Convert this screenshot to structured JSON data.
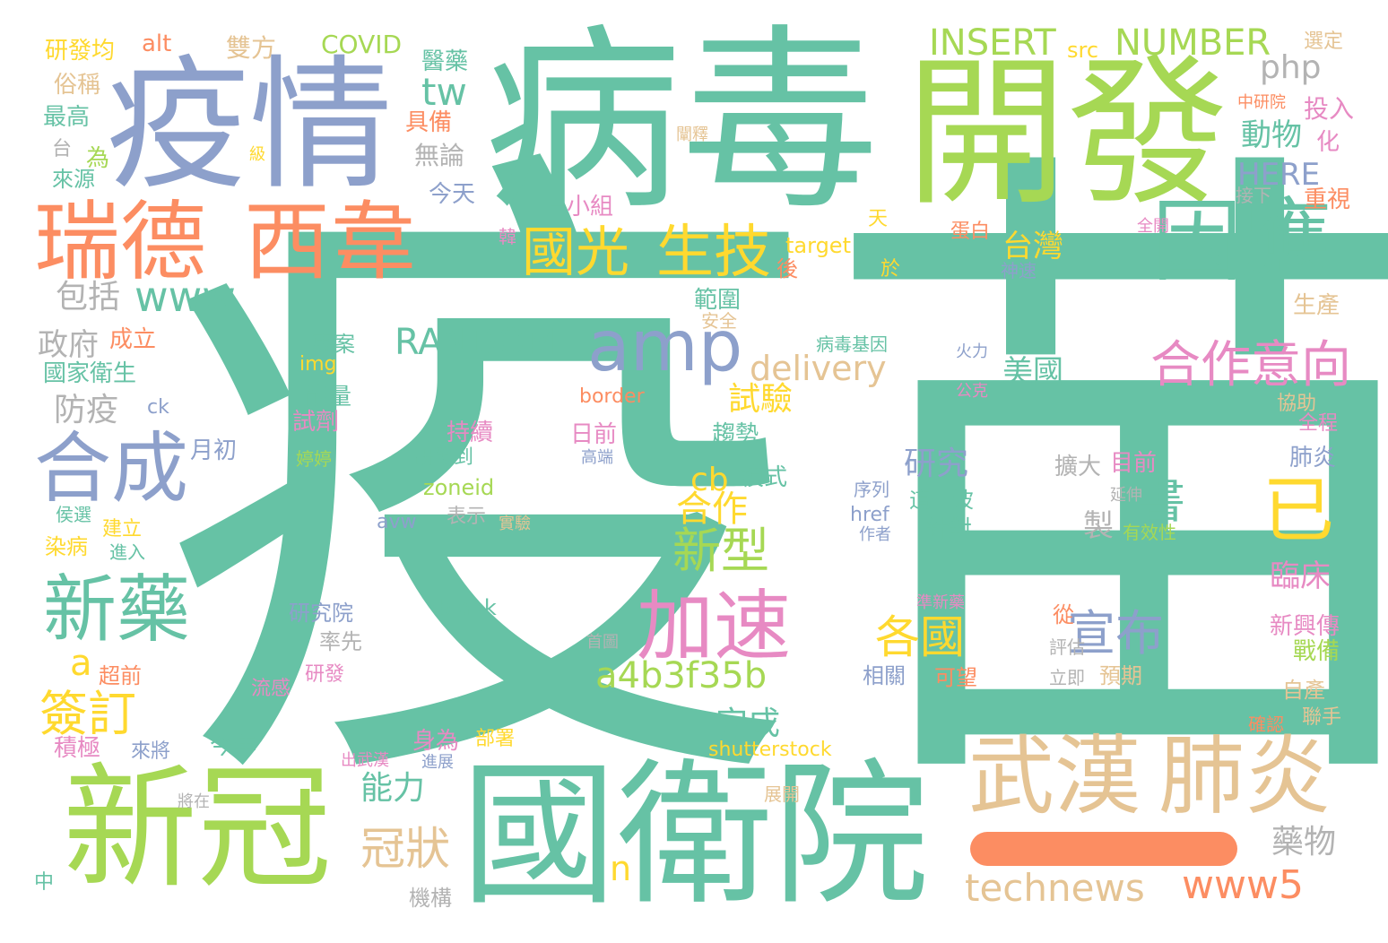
{
  "palette": {
    "teal": "#66c2a5",
    "orange": "#fc8d62",
    "blue": "#8da0cb",
    "pink": "#e78ac3",
    "green": "#a6d854",
    "yellow": "#ffd92f",
    "tan": "#e5c494",
    "gray": "#b3b3b3"
  },
  "words": [
    {
      "text": "疫苗",
      "color": "teal"
    },
    {
      "text": "病毒",
      "color": "teal"
    },
    {
      "text": "開發",
      "color": "green"
    },
    {
      "text": "疫情",
      "color": "blue"
    },
    {
      "text": "瑞德",
      "color": "orange"
    },
    {
      "text": "西韋",
      "color": "orange"
    },
    {
      "text": "因應",
      "color": "teal"
    },
    {
      "text": "國光",
      "color": "yellow"
    },
    {
      "text": "生技",
      "color": "yellow"
    },
    {
      "text": "amp",
      "color": "blue"
    },
    {
      "text": "delivery",
      "color": "tan"
    },
    {
      "text": "合作意向",
      "color": "pink"
    },
    {
      "text": "合成",
      "color": "blue"
    },
    {
      "text": "新藥",
      "color": "teal"
    },
    {
      "text": "加速",
      "color": "pink"
    },
    {
      "text": "新冠",
      "color": "green"
    },
    {
      "text": "國衛院",
      "color": "teal"
    },
    {
      "text": "武漢",
      "color": "tan"
    },
    {
      "text": "肺炎",
      "color": "tan"
    },
    {
      "text": "technews",
      "color": "tan"
    },
    {
      "text": "www5",
      "color": "orange"
    },
    {
      "text": "a4b3f35b",
      "color": "green"
    },
    {
      "text": "一",
      "color": "orange"
    },
    {
      "text": "INSERT",
      "color": "green"
    },
    {
      "text": "NUMBER",
      "color": "green"
    },
    {
      "text": "php",
      "color": "gray"
    },
    {
      "text": "tw",
      "color": "teal"
    },
    {
      "text": "www",
      "color": "teal"
    },
    {
      "text": "RANDOM",
      "color": "teal"
    },
    {
      "text": "台灣",
      "color": "yellow"
    },
    {
      "text": "美國",
      "color": "teal"
    },
    {
      "text": "試驗",
      "color": "yellow"
    },
    {
      "text": "包括",
      "color": "gray"
    },
    {
      "text": "政府",
      "color": "gray"
    },
    {
      "text": "防疫",
      "color": "gray"
    },
    {
      "text": "簽訂",
      "color": "yellow"
    },
    {
      "text": "a",
      "color": "yellow"
    },
    {
      "text": "cb",
      "color": "yellow"
    },
    {
      "text": "合作",
      "color": "yellow"
    },
    {
      "text": "新型",
      "color": "green"
    },
    {
      "text": "已",
      "color": "yellow"
    },
    {
      "text": "書",
      "color": "teal"
    },
    {
      "text": "宣布",
      "color": "blue"
    },
    {
      "text": "各國",
      "color": "yellow"
    },
    {
      "text": "研究",
      "color": "blue"
    },
    {
      "text": "冠狀",
      "color": "tan"
    },
    {
      "text": "完成",
      "color": "teal"
    },
    {
      "text": "能力",
      "color": "teal"
    },
    {
      "text": "n",
      "color": "yellow"
    },
    {
      "text": "動物",
      "color": "teal"
    },
    {
      "text": "HERE",
      "color": "blue"
    },
    {
      "text": "臨床",
      "color": "pink"
    },
    {
      "text": "新興傳",
      "color": "pink"
    },
    {
      "text": "戰備",
      "color": "green"
    },
    {
      "text": "藥物",
      "color": "gray"
    },
    {
      "text": "研發均",
      "color": "yellow"
    },
    {
      "text": "alt",
      "color": "orange"
    },
    {
      "text": "雙方",
      "color": "tan"
    },
    {
      "text": "COVID",
      "color": "green"
    },
    {
      "text": "src",
      "color": "yellow"
    },
    {
      "text": "選定",
      "color": "tan"
    },
    {
      "text": "醫藥",
      "color": "teal"
    },
    {
      "text": "俗稱",
      "color": "tan"
    },
    {
      "text": "最高",
      "color": "teal"
    },
    {
      "text": "具備",
      "color": "orange"
    },
    {
      "text": "無論",
      "color": "gray"
    },
    {
      "text": "今天",
      "color": "blue"
    },
    {
      "text": "闡釋",
      "color": "tan"
    },
    {
      "text": "中研院",
      "color": "orange"
    },
    {
      "text": "投入",
      "color": "pink"
    },
    {
      "text": "化",
      "color": "pink"
    },
    {
      "text": "台",
      "color": "gray"
    },
    {
      "text": "為",
      "color": "green"
    },
    {
      "text": "來源",
      "color": "teal"
    },
    {
      "text": "級",
      "color": "yellow"
    },
    {
      "text": "接下",
      "color": "gray"
    },
    {
      "text": "重視",
      "color": "orange"
    },
    {
      "text": "小組",
      "color": "pink"
    },
    {
      "text": "天",
      "color": "yellow"
    },
    {
      "text": "全開",
      "color": "pink"
    },
    {
      "text": "韓",
      "color": "pink"
    },
    {
      "text": "target",
      "color": "yellow"
    },
    {
      "text": "後",
      "color": "orange"
    },
    {
      "text": "蛋白",
      "color": "orange"
    },
    {
      "text": "神速",
      "color": "blue"
    },
    {
      "text": "於",
      "color": "yellow"
    },
    {
      "text": "範圍",
      "color": "teal"
    },
    {
      "text": "安全",
      "color": "tan"
    },
    {
      "text": "生產",
      "color": "tan"
    },
    {
      "text": "成立",
      "color": "orange"
    },
    {
      "text": "專案",
      "color": "teal"
    },
    {
      "text": "病毒基因",
      "color": "teal"
    },
    {
      "text": "火力",
      "color": "blue"
    },
    {
      "text": "img",
      "color": "yellow"
    },
    {
      "text": "國家衛生",
      "color": "teal"
    },
    {
      "text": "能量",
      "color": "teal"
    },
    {
      "text": "border",
      "color": "orange"
    },
    {
      "text": "公克",
      "color": "pink"
    },
    {
      "text": "協助",
      "color": "tan"
    },
    {
      "text": "全程",
      "color": "pink"
    },
    {
      "text": "ck",
      "color": "blue"
    },
    {
      "text": "試劑",
      "color": "pink"
    },
    {
      "text": "持續",
      "color": "pink"
    },
    {
      "text": "日前",
      "color": "pink"
    },
    {
      "text": "趨勢",
      "color": "teal"
    },
    {
      "text": "月初",
      "color": "blue"
    },
    {
      "text": "婷婷",
      "color": "green"
    },
    {
      "text": "研發到",
      "color": "teal"
    },
    {
      "text": "高端",
      "color": "blue"
    },
    {
      "text": "肺炎",
      "color": "blue"
    },
    {
      "text": "模式",
      "color": "teal"
    },
    {
      "text": "擴大",
      "color": "gray"
    },
    {
      "text": "目前",
      "color": "pink"
    },
    {
      "text": "zoneid",
      "color": "green"
    },
    {
      "text": "序列",
      "color": "blue"
    },
    {
      "text": "這一波",
      "color": "teal"
    },
    {
      "text": "延伸",
      "color": "gray"
    },
    {
      "text": "侯選",
      "color": "teal"
    },
    {
      "text": "表示",
      "color": "gray"
    },
    {
      "text": "href",
      "color": "blue"
    },
    {
      "text": "建立",
      "color": "yellow"
    },
    {
      "text": "avw",
      "color": "blue"
    },
    {
      "text": "實驗",
      "color": "tan"
    },
    {
      "text": "製",
      "color": "gray"
    },
    {
      "text": "有效性",
      "color": "green"
    },
    {
      "text": "染病",
      "color": "yellow"
    },
    {
      "text": "進入",
      "color": "teal"
    },
    {
      "text": "作者",
      "color": "blue"
    },
    {
      "text": "針對",
      "color": "teal"
    },
    {
      "text": "blank",
      "color": "teal"
    },
    {
      "text": "研究院",
      "color": "blue"
    },
    {
      "text": "準新藥",
      "color": "pink"
    },
    {
      "text": "率先",
      "color": "gray"
    },
    {
      "text": "從",
      "color": "orange"
    },
    {
      "text": "首圖",
      "color": "gray"
    },
    {
      "text": "評估",
      "color": "gray"
    },
    {
      "text": "超前",
      "color": "orange"
    },
    {
      "text": "相關",
      "color": "blue"
    },
    {
      "text": "可望",
      "color": "orange"
    },
    {
      "text": "立即",
      "color": "gray"
    },
    {
      "text": "預期",
      "color": "tan"
    },
    {
      "text": "流感",
      "color": "pink"
    },
    {
      "text": "研發",
      "color": "pink"
    },
    {
      "text": "自產",
      "color": "tan"
    },
    {
      "text": "確認",
      "color": "orange"
    },
    {
      "text": "聯手",
      "color": "tan"
    },
    {
      "text": "今年",
      "color": "teal"
    },
    {
      "text": "身為",
      "color": "pink"
    },
    {
      "text": "部署",
      "color": "yellow"
    },
    {
      "text": "積極",
      "color": "pink"
    },
    {
      "text": "來將",
      "color": "blue"
    },
    {
      "text": "出武漢",
      "color": "pink"
    },
    {
      "text": "進展",
      "color": "blue"
    },
    {
      "text": "shutterstock",
      "color": "yellow"
    },
    {
      "text": "將在",
      "color": "gray"
    },
    {
      "text": "展開",
      "color": "tan"
    },
    {
      "text": "中",
      "color": "teal"
    },
    {
      "text": "機構",
      "color": "gray"
    }
  ]
}
